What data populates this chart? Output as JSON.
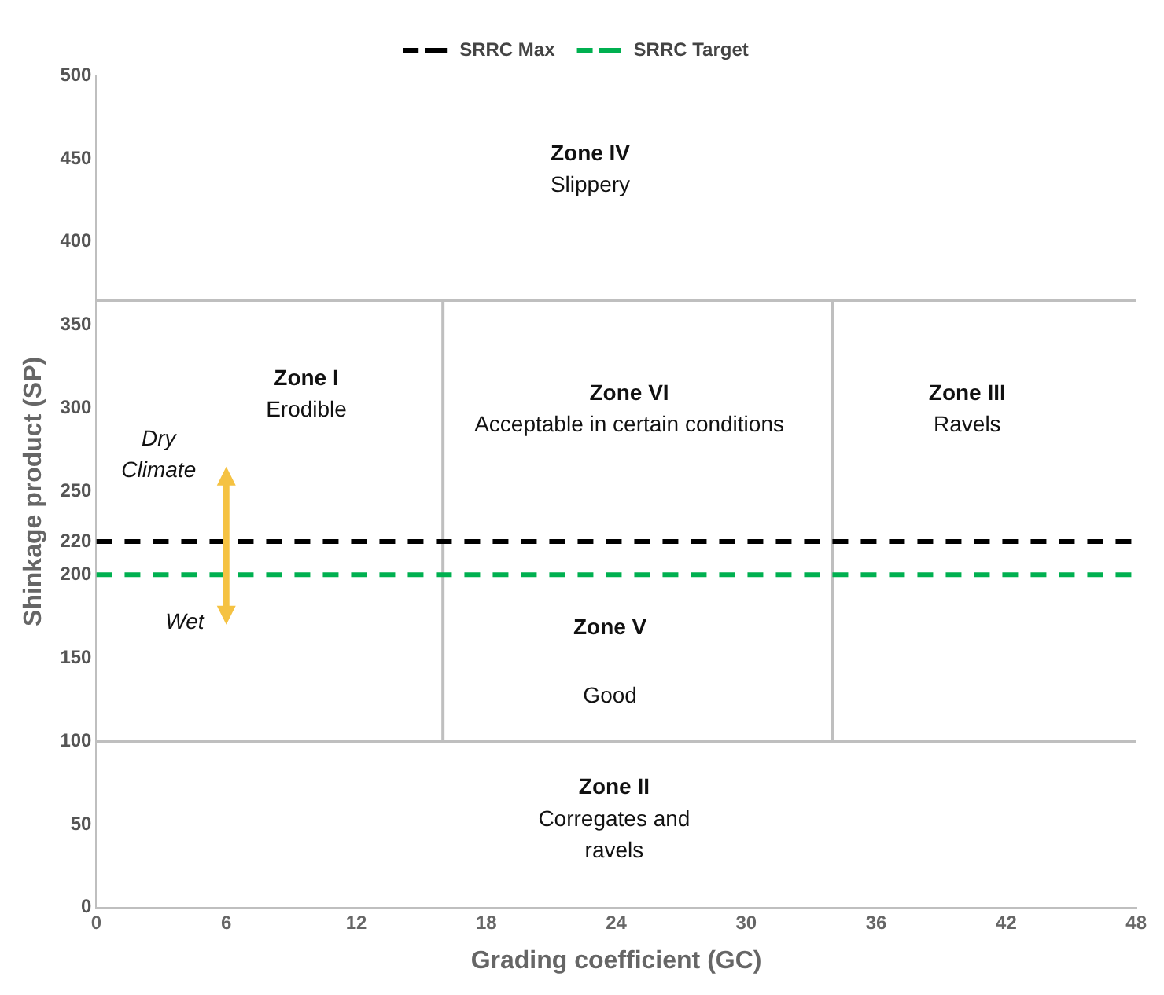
{
  "chart_data": {
    "type": "line",
    "xlabel": "Grading coefficient (GC)",
    "ylabel": "Shinkage product (SP)",
    "xlim": [
      0,
      48
    ],
    "xticks": [
      0,
      6,
      12,
      18,
      24,
      30,
      36,
      42,
      48
    ],
    "ylim": [
      0,
      500
    ],
    "yticks": [
      0,
      50,
      100,
      150,
      200,
      220,
      250,
      300,
      350,
      400,
      450,
      500
    ],
    "grid": false,
    "legend": "top",
    "marker": "none",
    "series": [
      {
        "name": "SRRC Max",
        "color": "#000000",
        "x": [
          0,
          48
        ],
        "values": [
          220,
          220
        ],
        "line_style": "dashed"
      },
      {
        "name": "SRRC Target",
        "color": "#00b050",
        "x": [
          0,
          48
        ],
        "values": [
          200,
          200
        ],
        "line_style": "dashed"
      },
      {
        "color": "#bfbfbf",
        "x": [
          0,
          48
        ],
        "values": [
          365,
          365
        ],
        "line_style": "solid"
      },
      {
        "color": "#bfbfbf",
        "x": [
          0,
          48
        ],
        "values": [
          100,
          100
        ],
        "line_style": "solid"
      },
      {
        "color": "#bfbfbf",
        "x": [
          16,
          16
        ],
        "values": [
          100,
          365
        ],
        "line_style": "solid"
      },
      {
        "color": "#bfbfbf",
        "x": [
          34,
          34
        ],
        "values": [
          100,
          365
        ],
        "line_style": "solid"
      }
    ],
    "annotations": [
      "Zone IV\nSlippery",
      "Zone I\nErodible",
      "Zone VI\nAcceptable in certain conditions",
      "Zone III\nRavels",
      "Dry\nClimate",
      "Wet",
      "Zone V",
      "Good",
      "Zone II",
      "Corregates and\nravels"
    ]
  }
}
